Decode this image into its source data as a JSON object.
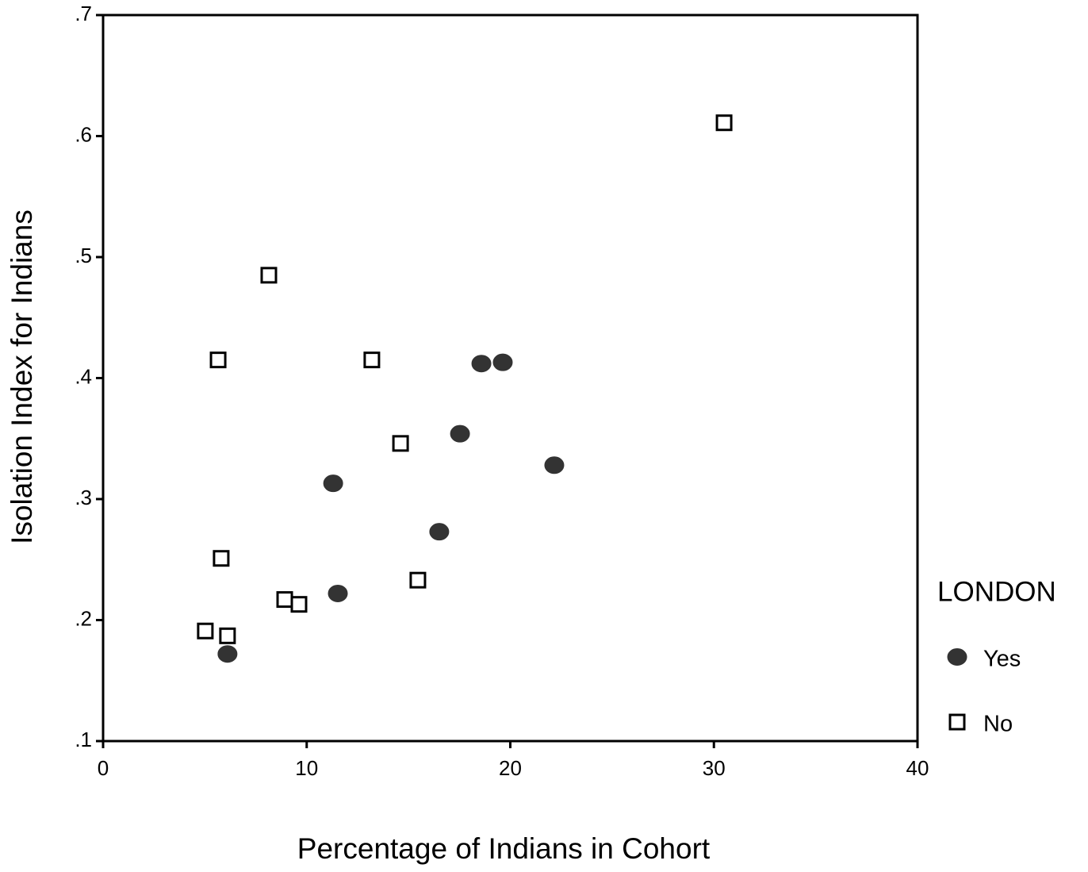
{
  "chart_data": {
    "type": "scatter",
    "x_label": "Percentage of Indians in Cohort",
    "y_label": "Isolation Index for Indians",
    "xlim": [
      0,
      40
    ],
    "xticks": [
      0,
      10,
      20,
      30,
      40
    ],
    "ylim": [
      0.1,
      0.7
    ],
    "yticks": [
      {
        "value": 0.1,
        "label": ".1"
      },
      {
        "value": 0.2,
        "label": ".2"
      },
      {
        "value": 0.3,
        "label": ".3"
      },
      {
        "value": 0.4,
        "label": ".4"
      },
      {
        "value": 0.5,
        "label": ".5"
      },
      {
        "value": 0.6,
        "label": ".6"
      },
      {
        "value": 0.7,
        "label": ".7"
      }
    ],
    "grid": false,
    "legend_title": "LONDON",
    "legend_position": "right",
    "series": [
      {
        "name": "Yes",
        "color": "#333333",
        "marker": "circle",
        "x": [
          6.11,
          11.53,
          11.3,
          16.51,
          17.53,
          18.58,
          19.63,
          22.16
        ],
        "values": [
          0.172,
          0.222,
          0.313,
          0.273,
          0.354,
          0.412,
          0.413,
          0.328
        ]
      },
      {
        "name": "No",
        "color": "#000000",
        "marker": "square",
        "x": [
          30.5,
          8.14,
          5.65,
          13.2,
          14.61,
          5.8,
          15.46,
          8.92,
          9.62,
          5.02,
          6.11
        ],
        "values": [
          0.611,
          0.485,
          0.415,
          0.415,
          0.346,
          0.251,
          0.233,
          0.217,
          0.213,
          0.191,
          0.187
        ]
      }
    ]
  }
}
